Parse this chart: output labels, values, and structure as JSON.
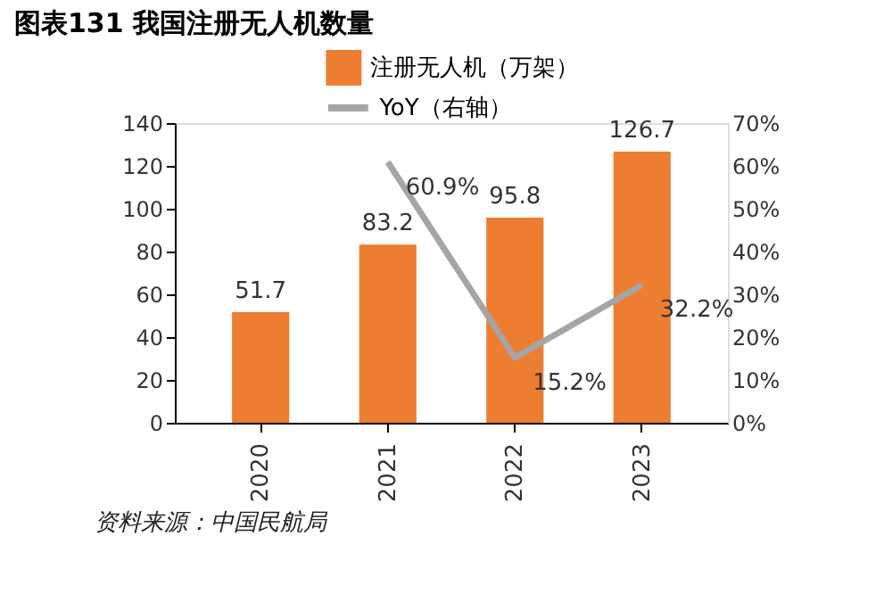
{
  "chart_data": {
    "type": "bar",
    "title": "图表131  我国注册无人机数量",
    "categories": [
      "2020",
      "2021",
      "2022",
      "2023"
    ],
    "series": [
      {
        "name": "注册无人机（万架）",
        "color": "#ed7d31",
        "values": [
          51.7,
          83.2,
          95.8,
          126.7
        ],
        "value_labels": [
          "51.7",
          "83.2",
          "95.8",
          "126.7"
        ]
      },
      {
        "name": "YoY（右轴）",
        "type": "line",
        "axis": "y2",
        "color": "#a5a5a5",
        "values": [
          null,
          60.9,
          15.2,
          32.2
        ],
        "value_labels": [
          null,
          "60.9%",
          "15.2%",
          "32.2%"
        ]
      }
    ],
    "ylim": [
      0,
      140
    ],
    "yticks": [
      0,
      20,
      40,
      60,
      80,
      100,
      120,
      140
    ],
    "y2lim": [
      0,
      70
    ],
    "y2ticks": [
      {
        "value": 0,
        "label": "0%"
      },
      {
        "value": 10,
        "label": "10%"
      },
      {
        "value": 20,
        "label": "20%"
      },
      {
        "value": 30,
        "label": "30%"
      },
      {
        "value": 40,
        "label": "40%"
      },
      {
        "value": 50,
        "label": "50%"
      },
      {
        "value": 60,
        "label": "60%"
      },
      {
        "value": 70,
        "label": "70%"
      }
    ],
    "grid": false,
    "legend": "top",
    "marker": "none",
    "line_style": "solid",
    "annotations": [
      "资料来源：中国民航局"
    ]
  }
}
